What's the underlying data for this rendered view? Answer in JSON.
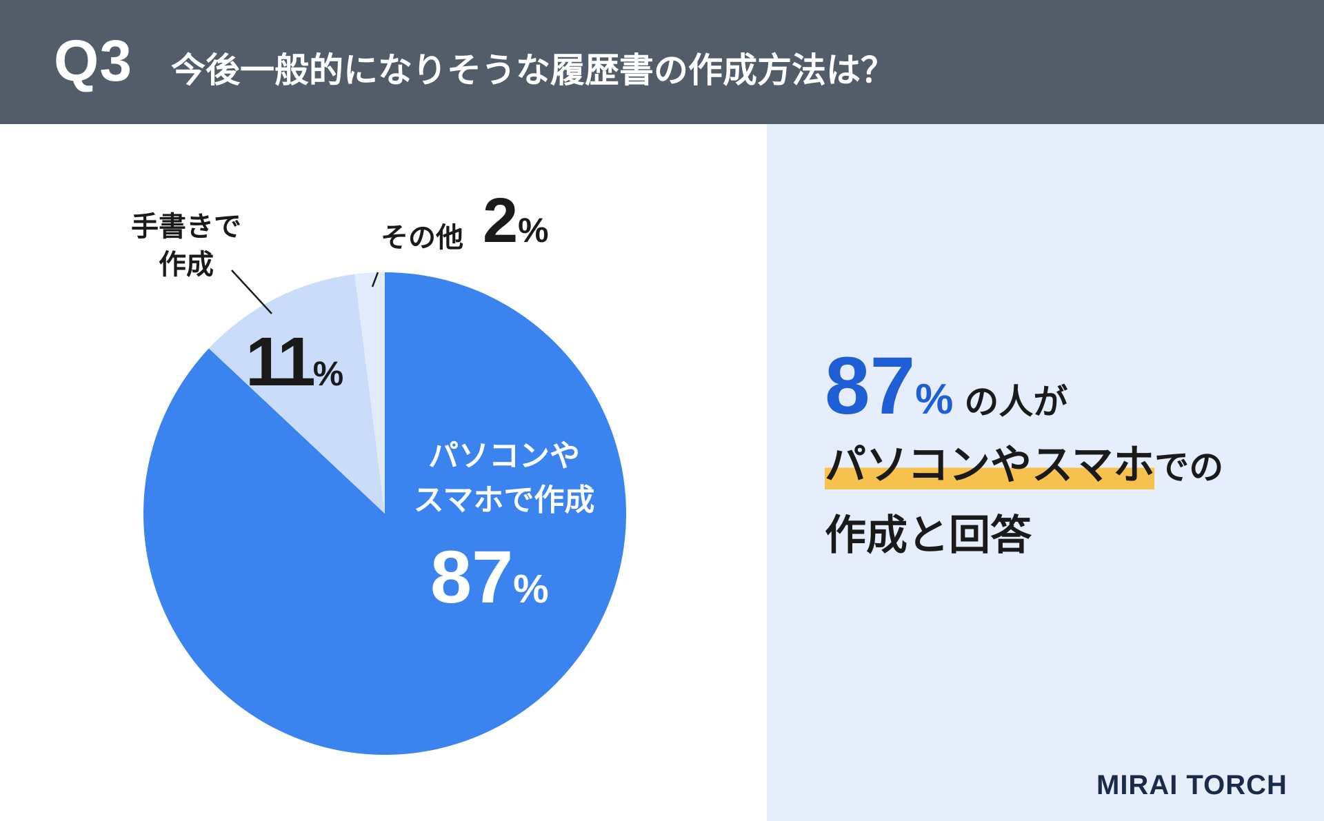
{
  "header": {
    "question_number": "Q3",
    "question_text": "今後一般的になりそうな履歴書の作成方法は？"
  },
  "chart_data": {
    "type": "pie",
    "start": "top, clockwise",
    "slices": [
      {
        "label": "パソコンやスマホで作成",
        "value": 87,
        "color": "#3b84f0"
      },
      {
        "label": "手書きで作成",
        "value": 11,
        "color": "#cbdcfb"
      },
      {
        "label": "その他",
        "value": 2,
        "color": "#e2ebfc"
      }
    ]
  },
  "labels": {
    "handwritten_line1": "手書きで",
    "handwritten_line2": "作成",
    "handwritten_value": "11",
    "other_text": "その他",
    "other_value": "2",
    "main_line1": "パソコンや",
    "main_line2": "スマホで作成",
    "main_value": "87",
    "percent_sign": "%"
  },
  "summary": {
    "value": "87",
    "percent_sign": "%",
    "line1_rest": "の人が",
    "line2_highlight": "パソコンやスマホ",
    "line2_tail": "での",
    "line3": "作成と回答"
  },
  "brand": {
    "logo": "MIRAI TORCH"
  }
}
